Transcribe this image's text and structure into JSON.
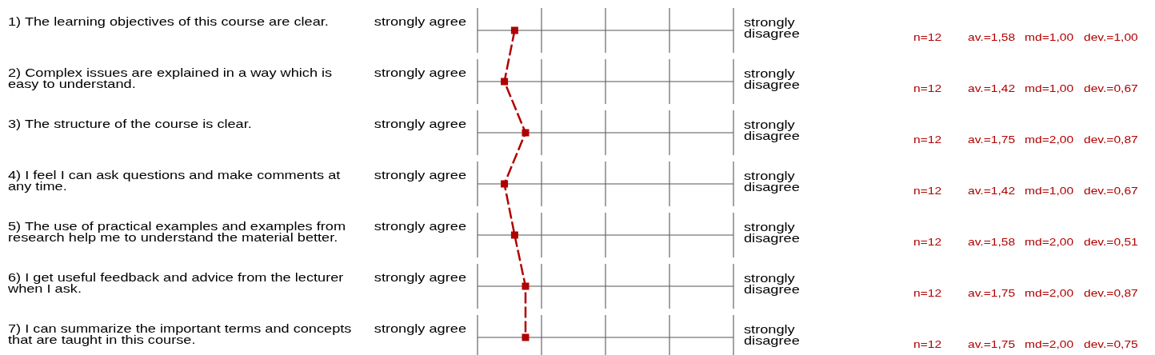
{
  "chart_data": {
    "type": "line",
    "orientation": "horizontal",
    "categories": [
      "1) The learning objectives of this course are clear.",
      "2) Complex issues are explained in a way which is easy to understand.",
      "3) The structure of the course is clear.",
      "4) I feel I can ask questions and make comments at any time.",
      "5) The use of practical examples and examples from research help me to understand the material better.",
      "6) I get useful feedback and advice from the lecturer when I ask.",
      "7) I can summarize the important terms and concepts that are taught in this course."
    ],
    "series": [
      {
        "color": "#b00000",
        "values": [
          1.58,
          1.42,
          1.75,
          1.42,
          1.58,
          1.75,
          1.75
        ],
        "value_labels": [
          "av.=1,58",
          "av.=1,42",
          "av.=1,75",
          "av.=1,42",
          "av.=1,58",
          "av.=1,75",
          "av.=1,75"
        ]
      }
    ],
    "xlim": [
      1,
      5
    ],
    "grid": "y",
    "marker": "square",
    "line_style": "dashed",
    "annotations": [
      "strongly agree",
      "strongly disagree",
      "n=12",
      "md=1,00",
      "dev.=1,00",
      "strongly agree",
      "strongly disagree",
      "n=12",
      "md=1,00",
      "dev.=0,67",
      "strongly agree",
      "strongly disagree",
      "n=12",
      "md=2,00",
      "dev.=0,87",
      "strongly agree",
      "strongly disagree",
      "n=12",
      "md=1,00",
      "dev.=0,67",
      "strongly agree",
      "strongly disagree",
      "n=12",
      "md=2,00",
      "dev.=0,51",
      "strongly agree",
      "strongly disagree",
      "n=12",
      "md=2,00",
      "dev.=0,87",
      "strongly agree",
      "strongly disagree",
      "n=12",
      "md=2,00",
      "dev.=0,75"
    ]
  }
}
